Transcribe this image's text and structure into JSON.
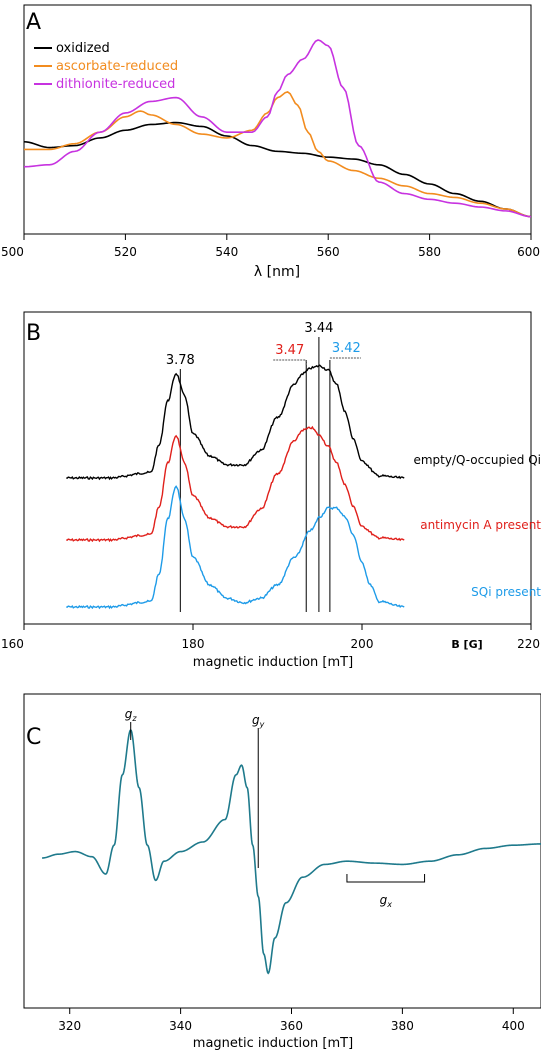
{
  "chart_data": [
    {
      "type": "line",
      "panel_label": "A",
      "xlabel": "λ [nm]",
      "ylabel": "",
      "xlim": [
        500,
        600
      ],
      "xticks": [
        500,
        520,
        540,
        560,
        580,
        600
      ],
      "ylim": [
        0,
        1
      ],
      "legend": "top-left",
      "series": [
        {
          "name": "oxidized",
          "color": "#000000",
          "x": [
            500,
            505,
            510,
            515,
            520,
            525,
            530,
            535,
            540,
            545,
            550,
            555,
            560,
            565,
            570,
            575,
            580,
            585,
            590,
            595,
            600
          ],
          "y": [
            0.47,
            0.44,
            0.45,
            0.49,
            0.53,
            0.56,
            0.57,
            0.55,
            0.5,
            0.45,
            0.42,
            0.41,
            0.39,
            0.38,
            0.35,
            0.3,
            0.25,
            0.2,
            0.16,
            0.12,
            0.08
          ]
        },
        {
          "name": "ascorbate-reduced",
          "color": "#f28c1f",
          "x": [
            500,
            505,
            510,
            515,
            520,
            523,
            525,
            530,
            535,
            540,
            545,
            548,
            550,
            552,
            554,
            556,
            558,
            560,
            565,
            570,
            575,
            580,
            585,
            590,
            595,
            600
          ],
          "y": [
            0.43,
            0.43,
            0.46,
            0.52,
            0.6,
            0.63,
            0.61,
            0.56,
            0.51,
            0.49,
            0.53,
            0.62,
            0.7,
            0.73,
            0.66,
            0.52,
            0.42,
            0.37,
            0.32,
            0.28,
            0.24,
            0.2,
            0.18,
            0.15,
            0.12,
            0.08
          ]
        },
        {
          "name": "dithionite-reduced",
          "color": "#c733e0",
          "x": [
            500,
            505,
            510,
            515,
            520,
            525,
            530,
            535,
            540,
            545,
            548,
            550,
            552,
            555,
            558,
            560,
            563,
            566,
            570,
            575,
            580,
            585,
            590,
            595,
            600
          ],
          "y": [
            0.34,
            0.35,
            0.42,
            0.52,
            0.62,
            0.68,
            0.7,
            0.6,
            0.52,
            0.52,
            0.6,
            0.73,
            0.82,
            0.9,
            1.0,
            0.97,
            0.75,
            0.45,
            0.26,
            0.2,
            0.17,
            0.15,
            0.13,
            0.11,
            0.08
          ]
        }
      ]
    },
    {
      "type": "line",
      "panel_label": "B",
      "xlabel": "magnetic induction [mT]",
      "ylabel": "",
      "xlim": [
        160,
        220
      ],
      "xticks": [
        160,
        180,
        200,
        220
      ],
      "x2label": "B [G]",
      "vertical_lines": [
        {
          "label": "3.78",
          "x": 178.5,
          "color": "#000000"
        },
        {
          "label": "3.44",
          "x": 194.9,
          "color": "#000000"
        },
        {
          "label": "3.47",
          "x": 193.4,
          "color": "#e0201b"
        },
        {
          "label": "3.42",
          "x": 196.2,
          "color": "#1e9be8"
        }
      ],
      "series": [
        {
          "name": "empty/Q-occupied Qi",
          "color": "#000000",
          "offset": 2.0,
          "x": [
            165,
            170,
            175,
            176,
            177,
            178,
            179,
            180,
            182,
            184,
            186,
            188,
            190,
            192,
            193,
            194,
            195,
            196,
            197,
            198,
            199,
            200,
            202,
            205
          ],
          "y": [
            0.0,
            0.0,
            0.05,
            0.3,
            0.7,
            0.95,
            0.75,
            0.4,
            0.2,
            0.12,
            0.12,
            0.25,
            0.55,
            0.85,
            0.95,
            1.0,
            1.02,
            0.98,
            0.85,
            0.6,
            0.35,
            0.15,
            0.02,
            0.0
          ]
        },
        {
          "name": "antimycin A present",
          "color": "#e0201b",
          "offset": 1.0,
          "x": [
            165,
            170,
            175,
            176,
            177,
            178,
            179,
            180,
            182,
            184,
            186,
            188,
            190,
            192,
            193,
            194,
            195,
            196,
            197,
            198,
            199,
            200,
            202,
            205
          ],
          "y": [
            0.0,
            0.0,
            0.05,
            0.3,
            0.7,
            0.95,
            0.7,
            0.4,
            0.2,
            0.12,
            0.12,
            0.28,
            0.6,
            0.9,
            1.0,
            1.02,
            0.95,
            0.85,
            0.7,
            0.5,
            0.3,
            0.12,
            0.02,
            0.0
          ]
        },
        {
          "name": "SQi present",
          "color": "#1e9be8",
          "offset": 0.0,
          "x": [
            165,
            170,
            175,
            176,
            177,
            178,
            179,
            180,
            182,
            184,
            186,
            188,
            190,
            192,
            194,
            195,
            196,
            197,
            198,
            199,
            200,
            201,
            202,
            205
          ],
          "y": [
            0.0,
            0.0,
            0.05,
            0.3,
            0.8,
            1.1,
            0.8,
            0.45,
            0.2,
            0.08,
            0.04,
            0.08,
            0.2,
            0.45,
            0.7,
            0.82,
            0.9,
            0.9,
            0.82,
            0.65,
            0.4,
            0.2,
            0.05,
            0.0
          ]
        }
      ]
    },
    {
      "type": "line",
      "panel_label": "C",
      "xlabel": "magnetic induction [mT]",
      "ylabel": "",
      "xlim": [
        315,
        405
      ],
      "xticks": [
        320,
        340,
        360,
        380,
        400
      ],
      "annotations": [
        {
          "label": "gz",
          "main": "g",
          "sub": "z",
          "x": 331
        },
        {
          "label": "gy",
          "main": "g",
          "sub": "y",
          "x": 354
        },
        {
          "label": "gx",
          "main": "g",
          "sub": "x",
          "x_start": 370,
          "x_end": 384
        }
      ],
      "series": [
        {
          "name": "",
          "color": "#1f7a8c",
          "x": [
            315,
            318,
            321,
            324,
            326.5,
            328,
            329.5,
            331,
            332.5,
            334,
            335.5,
            337,
            340,
            344,
            348,
            350,
            351,
            352,
            353,
            354,
            355,
            355.8,
            357,
            359,
            362,
            366,
            370,
            375,
            380,
            385,
            390,
            395,
            400,
            405
          ],
          "y": [
            0.0,
            0.06,
            0.1,
            0.02,
            -0.25,
            0.2,
            1.3,
            2.0,
            1.1,
            0.2,
            -0.35,
            -0.05,
            0.1,
            0.25,
            0.6,
            1.3,
            1.45,
            1.1,
            0.2,
            -0.6,
            -1.5,
            -1.8,
            -1.25,
            -0.7,
            -0.3,
            -0.1,
            -0.05,
            -0.08,
            -0.1,
            -0.05,
            0.05,
            0.15,
            0.2,
            0.22
          ]
        }
      ]
    }
  ]
}
